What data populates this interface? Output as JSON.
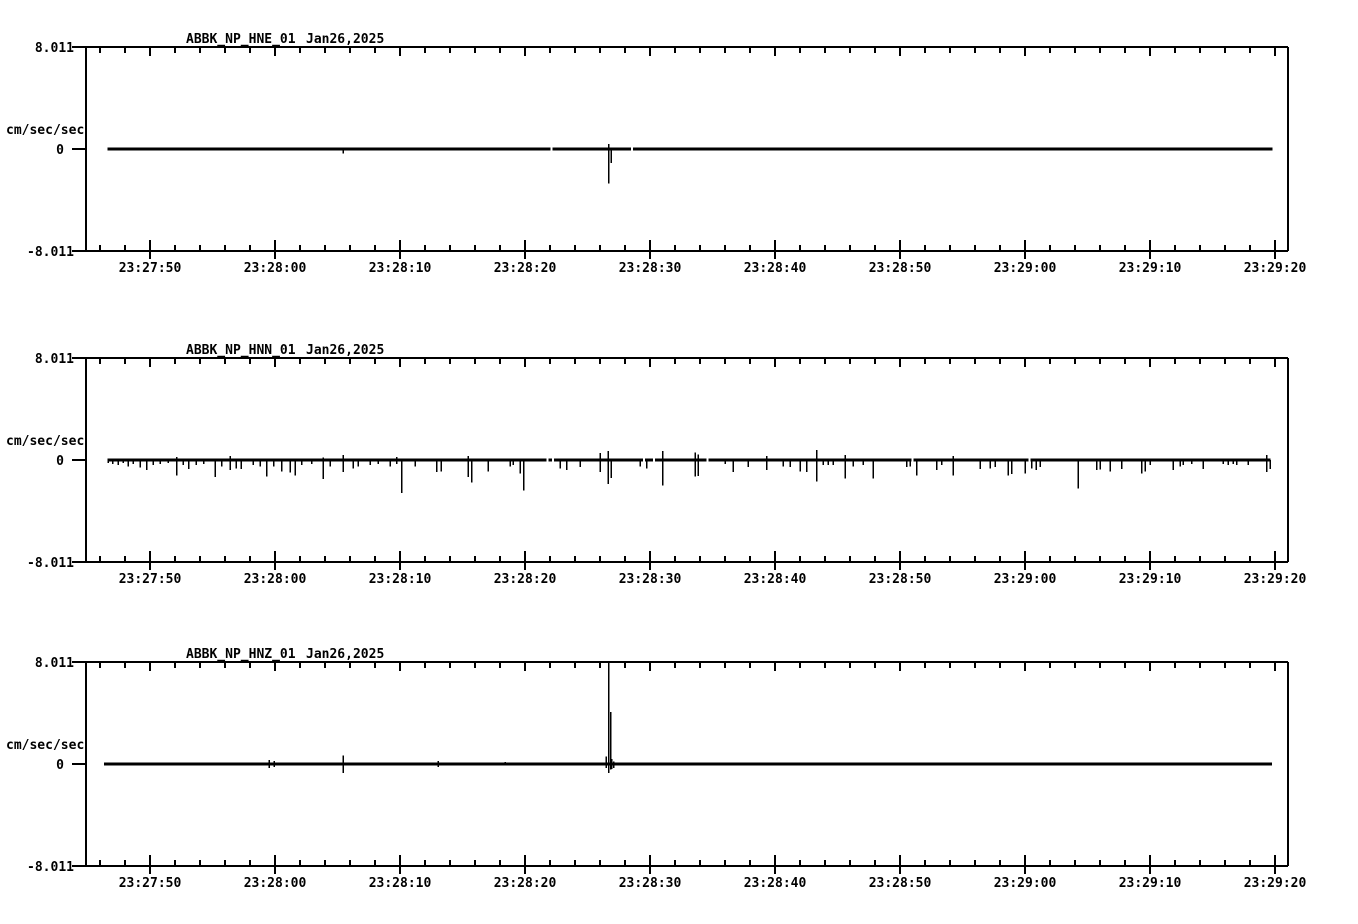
{
  "meta": {
    "background_color": "#ffffff",
    "foreground_color": "#000000",
    "description": "Three-channel strong-motion seismogram waveform display"
  },
  "chart_data": [
    {
      "type": "line",
      "title": "ABBK_NP_HNE_01",
      "date": "Jan26,2025",
      "ylabel": "cm/sec/sec",
      "ylim": [
        -8.011,
        8.011
      ],
      "ytick_labels": [
        "8.011",
        "0",
        "-8.011"
      ],
      "xtick_labels": [
        "23:27:50",
        "23:28:00",
        "23:28:10",
        "23:28:20",
        "23:28:30",
        "23:28:40",
        "23:28:50",
        "23:29:00",
        "23:29:10",
        "23:29:20"
      ],
      "xtick_interval_sec": 10,
      "minor_tick_sec": 2,
      "baseline_value": 0,
      "trace_start_sec": -3.4,
      "trace_end_sec": 89.8,
      "trace_gaps_sec": [
        32.1,
        38.55
      ],
      "spikes": [
        [
          15.45,
          -0.35,
          0.12
        ],
        [
          36.7,
          -2.7,
          0.4
        ],
        [
          36.9,
          -1.1,
          0
        ]
      ]
    },
    {
      "type": "line",
      "title": "ABBK_NP_HNN_01",
      "date": "Jan26,2025",
      "ylabel": "cm/sec/sec",
      "ylim": [
        -8.011,
        8.011
      ],
      "ytick_labels": [
        "8.011",
        "0",
        "-8.011"
      ],
      "xtick_labels": [
        "23:27:50",
        "23:28:00",
        "23:28:10",
        "23:28:20",
        "23:28:30",
        "23:28:40",
        "23:28:50",
        "23:29:00",
        "23:29:10",
        "23:29:20"
      ],
      "xtick_interval_sec": 10,
      "minor_tick_sec": 2,
      "baseline_value": 0,
      "trace_start_sec": -3.4,
      "trace_end_sec": 89.65,
      "trace_gaps_sec": [
        31.8,
        32.25,
        39.5,
        40.3,
        44.6,
        61.0,
        70.35
      ],
      "spikes": [
        [
          -3.35,
          -0.25
        ],
        [
          -3.0,
          -0.3
        ],
        [
          -2.55,
          -0.4
        ],
        [
          -2.15,
          -0.25
        ],
        [
          -1.75,
          -0.5
        ],
        [
          -1.35,
          -0.3
        ],
        [
          -0.8,
          -0.6
        ],
        [
          -0.25,
          -0.8
        ],
        [
          0.25,
          -0.4
        ],
        [
          0.8,
          -0.3
        ],
        [
          1.45,
          -0.25
        ],
        [
          2.15,
          -1.2,
          0.25
        ],
        [
          2.65,
          -0.4
        ],
        [
          3.1,
          -0.7
        ],
        [
          3.7,
          -0.4
        ],
        [
          4.3,
          -0.3
        ],
        [
          5.2,
          -1.35
        ],
        [
          5.75,
          -0.5
        ],
        [
          6.4,
          -0.8,
          0.3
        ],
        [
          6.9,
          -0.65
        ],
        [
          7.3,
          -0.7
        ],
        [
          8.25,
          -0.4
        ],
        [
          8.8,
          -0.5
        ],
        [
          9.35,
          -1.3
        ],
        [
          9.9,
          -0.5
        ],
        [
          10.55,
          -0.9
        ],
        [
          11.2,
          -1.0
        ],
        [
          11.6,
          -1.2
        ],
        [
          12.15,
          -0.4
        ],
        [
          12.95,
          -0.3
        ],
        [
          13.85,
          -1.5,
          0.2
        ],
        [
          14.4,
          -0.5
        ],
        [
          15.45,
          -0.95,
          0.4
        ],
        [
          16.25,
          -0.65
        ],
        [
          16.65,
          -0.5
        ],
        [
          17.6,
          -0.4
        ],
        [
          18.25,
          -0.3
        ],
        [
          19.2,
          -0.5
        ],
        [
          19.75,
          -0.3,
          0.25
        ],
        [
          20.15,
          -2.6
        ],
        [
          21.2,
          -0.5
        ],
        [
          22.95,
          -0.95
        ],
        [
          23.3,
          -0.9
        ],
        [
          25.45,
          -1.35,
          0.3
        ],
        [
          25.75,
          -1.75
        ],
        [
          27.05,
          -0.9
        ],
        [
          28.8,
          -0.5
        ],
        [
          29.05,
          -0.4
        ],
        [
          29.6,
          -1.05
        ],
        [
          29.9,
          -2.4
        ],
        [
          32.8,
          -0.65
        ],
        [
          33.35,
          -0.8
        ],
        [
          34.4,
          -0.55
        ],
        [
          36.0,
          -0.95,
          0.55
        ],
        [
          36.65,
          -1.9,
          0.7
        ],
        [
          36.9,
          -1.4
        ],
        [
          39.2,
          -0.5
        ],
        [
          39.75,
          -0.65
        ],
        [
          41.0,
          -2.0,
          0.7
        ],
        [
          43.6,
          -1.3,
          0.6
        ],
        [
          43.85,
          -1.25,
          0.45
        ],
        [
          46.0,
          -0.3
        ],
        [
          46.65,
          -0.95
        ],
        [
          47.85,
          -0.55
        ],
        [
          49.35,
          -0.8,
          0.3
        ],
        [
          50.65,
          -0.5
        ],
        [
          51.2,
          -0.55
        ],
        [
          52.0,
          -0.9
        ],
        [
          52.55,
          -0.95
        ],
        [
          53.35,
          -1.7,
          0.8
        ],
        [
          53.85,
          -0.4
        ],
        [
          54.25,
          -0.4
        ],
        [
          54.65,
          -0.4
        ],
        [
          55.6,
          -1.45,
          0.4
        ],
        [
          56.25,
          -0.5
        ],
        [
          57.05,
          -0.4
        ],
        [
          57.85,
          -1.45
        ],
        [
          60.55,
          -0.55
        ],
        [
          60.8,
          -0.5
        ],
        [
          61.35,
          -1.2
        ],
        [
          62.95,
          -0.8
        ],
        [
          63.35,
          -0.4
        ],
        [
          64.25,
          -1.2,
          0.3
        ],
        [
          66.4,
          -0.7
        ],
        [
          67.2,
          -0.65
        ],
        [
          67.6,
          -0.55
        ],
        [
          68.65,
          -1.2
        ],
        [
          68.95,
          -1.1
        ],
        [
          70.0,
          -1.05
        ],
        [
          70.55,
          -0.65
        ],
        [
          70.9,
          -0.8
        ],
        [
          71.2,
          -0.55
        ],
        [
          74.25,
          -2.25
        ],
        [
          75.75,
          -0.8
        ],
        [
          76.0,
          -0.75
        ],
        [
          76.8,
          -0.9
        ],
        [
          77.75,
          -0.7
        ],
        [
          79.35,
          -1.05
        ],
        [
          79.6,
          -0.9
        ],
        [
          80.0,
          -0.4
        ],
        [
          81.85,
          -0.8
        ],
        [
          82.4,
          -0.5
        ],
        [
          82.65,
          -0.4
        ],
        [
          83.35,
          -0.3
        ],
        [
          84.25,
          -0.7
        ],
        [
          85.85,
          -0.3
        ],
        [
          86.25,
          -0.4
        ],
        [
          86.65,
          -0.3
        ],
        [
          86.95,
          -0.4
        ],
        [
          87.85,
          -0.4
        ],
        [
          89.35,
          -0.95,
          0.4
        ],
        [
          89.6,
          -0.7
        ]
      ]
    },
    {
      "type": "line",
      "title": "ABBK_NP_HNZ_01",
      "date": "Jan26,2025",
      "ylabel": "cm/sec/sec",
      "ylim": [
        -8.011,
        8.011
      ],
      "ytick_labels": [
        "8.011",
        "0",
        "-8.011"
      ],
      "xtick_labels": [
        "23:27:50",
        "23:28:00",
        "23:28:10",
        "23:28:20",
        "23:28:30",
        "23:28:40",
        "23:28:50",
        "23:29:00",
        "23:29:10",
        "23:29:20"
      ],
      "xtick_interval_sec": 10,
      "minor_tick_sec": 2,
      "baseline_value": 0,
      "trace_start_sec": -3.7,
      "trace_end_sec": 89.75,
      "trace_gaps_sec": [],
      "spikes": [
        [
          9.55,
          -0.3,
          0.3
        ],
        [
          9.95,
          -0.25,
          0.25
        ],
        [
          15.45,
          -0.7,
          0.65
        ],
        [
          23.05,
          -0.25,
          0.25
        ],
        [
          28.4,
          0,
          0.15
        ],
        [
          36.5,
          -0.3,
          0.6
        ],
        [
          36.7,
          -0.7,
          8.011
        ],
        [
          36.85,
          -0.45,
          4.1
        ],
        [
          36.95,
          -0.4,
          0.4
        ],
        [
          37.1,
          -0.3,
          0.2
        ]
      ]
    }
  ]
}
